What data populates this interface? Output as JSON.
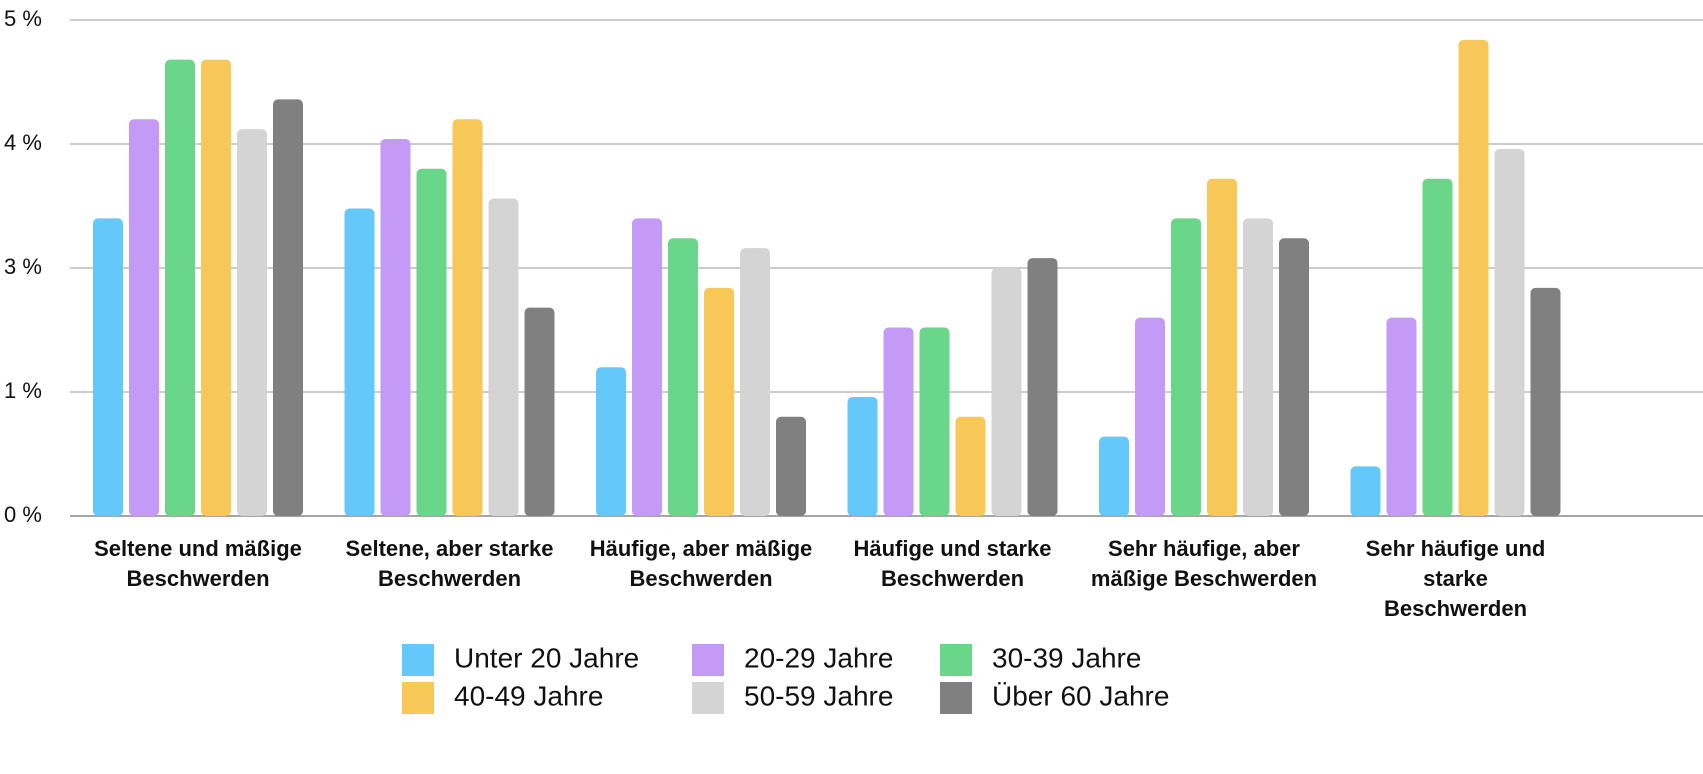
{
  "chart_data": {
    "type": "bar",
    "categories": [
      [
        "Seltene und mäßige",
        "Beschwerden"
      ],
      [
        "Seltene, aber starke",
        "Beschwerden"
      ],
      [
        "Häufige, aber mäßige",
        "Beschwerden"
      ],
      [
        "Häufige und starke",
        "Beschwerden"
      ],
      [
        "Sehr häufige, aber",
        "mäßige Beschwerden"
      ],
      [
        "Sehr häufige und",
        "starke",
        "Beschwerden"
      ]
    ],
    "series": [
      {
        "name": "Unter 20 Jahre",
        "color": "#64c8fa",
        "values": [
          3.0,
          3.1,
          1.5,
          1.2,
          0.8,
          0.5
        ]
      },
      {
        "name": "20-29 Jahre",
        "color": "#c39af5",
        "values": [
          4.0,
          3.8,
          3.0,
          1.9,
          2.0,
          2.0
        ]
      },
      {
        "name": "30-39 Jahre",
        "color": "#6ad68a",
        "values": [
          4.6,
          3.5,
          2.8,
          1.9,
          3.0,
          3.4
        ]
      },
      {
        "name": "40-49 Jahre",
        "color": "#f7c758",
        "values": [
          4.6,
          4.0,
          2.3,
          1.0,
          3.4,
          4.8
        ]
      },
      {
        "name": "50-59 Jahre",
        "color": "#d4d4d4",
        "values": [
          3.9,
          3.2,
          2.7,
          2.5,
          3.0,
          3.7
        ]
      },
      {
        "name": "Über 60 Jahre",
        "color": "#808080",
        "values": [
          4.2,
          2.1,
          1.0,
          2.6,
          2.8,
          2.3
        ]
      }
    ],
    "ylim": [
      0,
      5
    ],
    "yticks": [
      {
        "value": 0,
        "label": "0 %"
      },
      {
        "value": 1.25,
        "label": "1 %"
      },
      {
        "value": 2.5,
        "label": "3 %"
      },
      {
        "value": 3.75,
        "label": "4 %"
      },
      {
        "value": 5,
        "label": "5 %"
      }
    ],
    "grid": true,
    "legend": "bottom"
  }
}
